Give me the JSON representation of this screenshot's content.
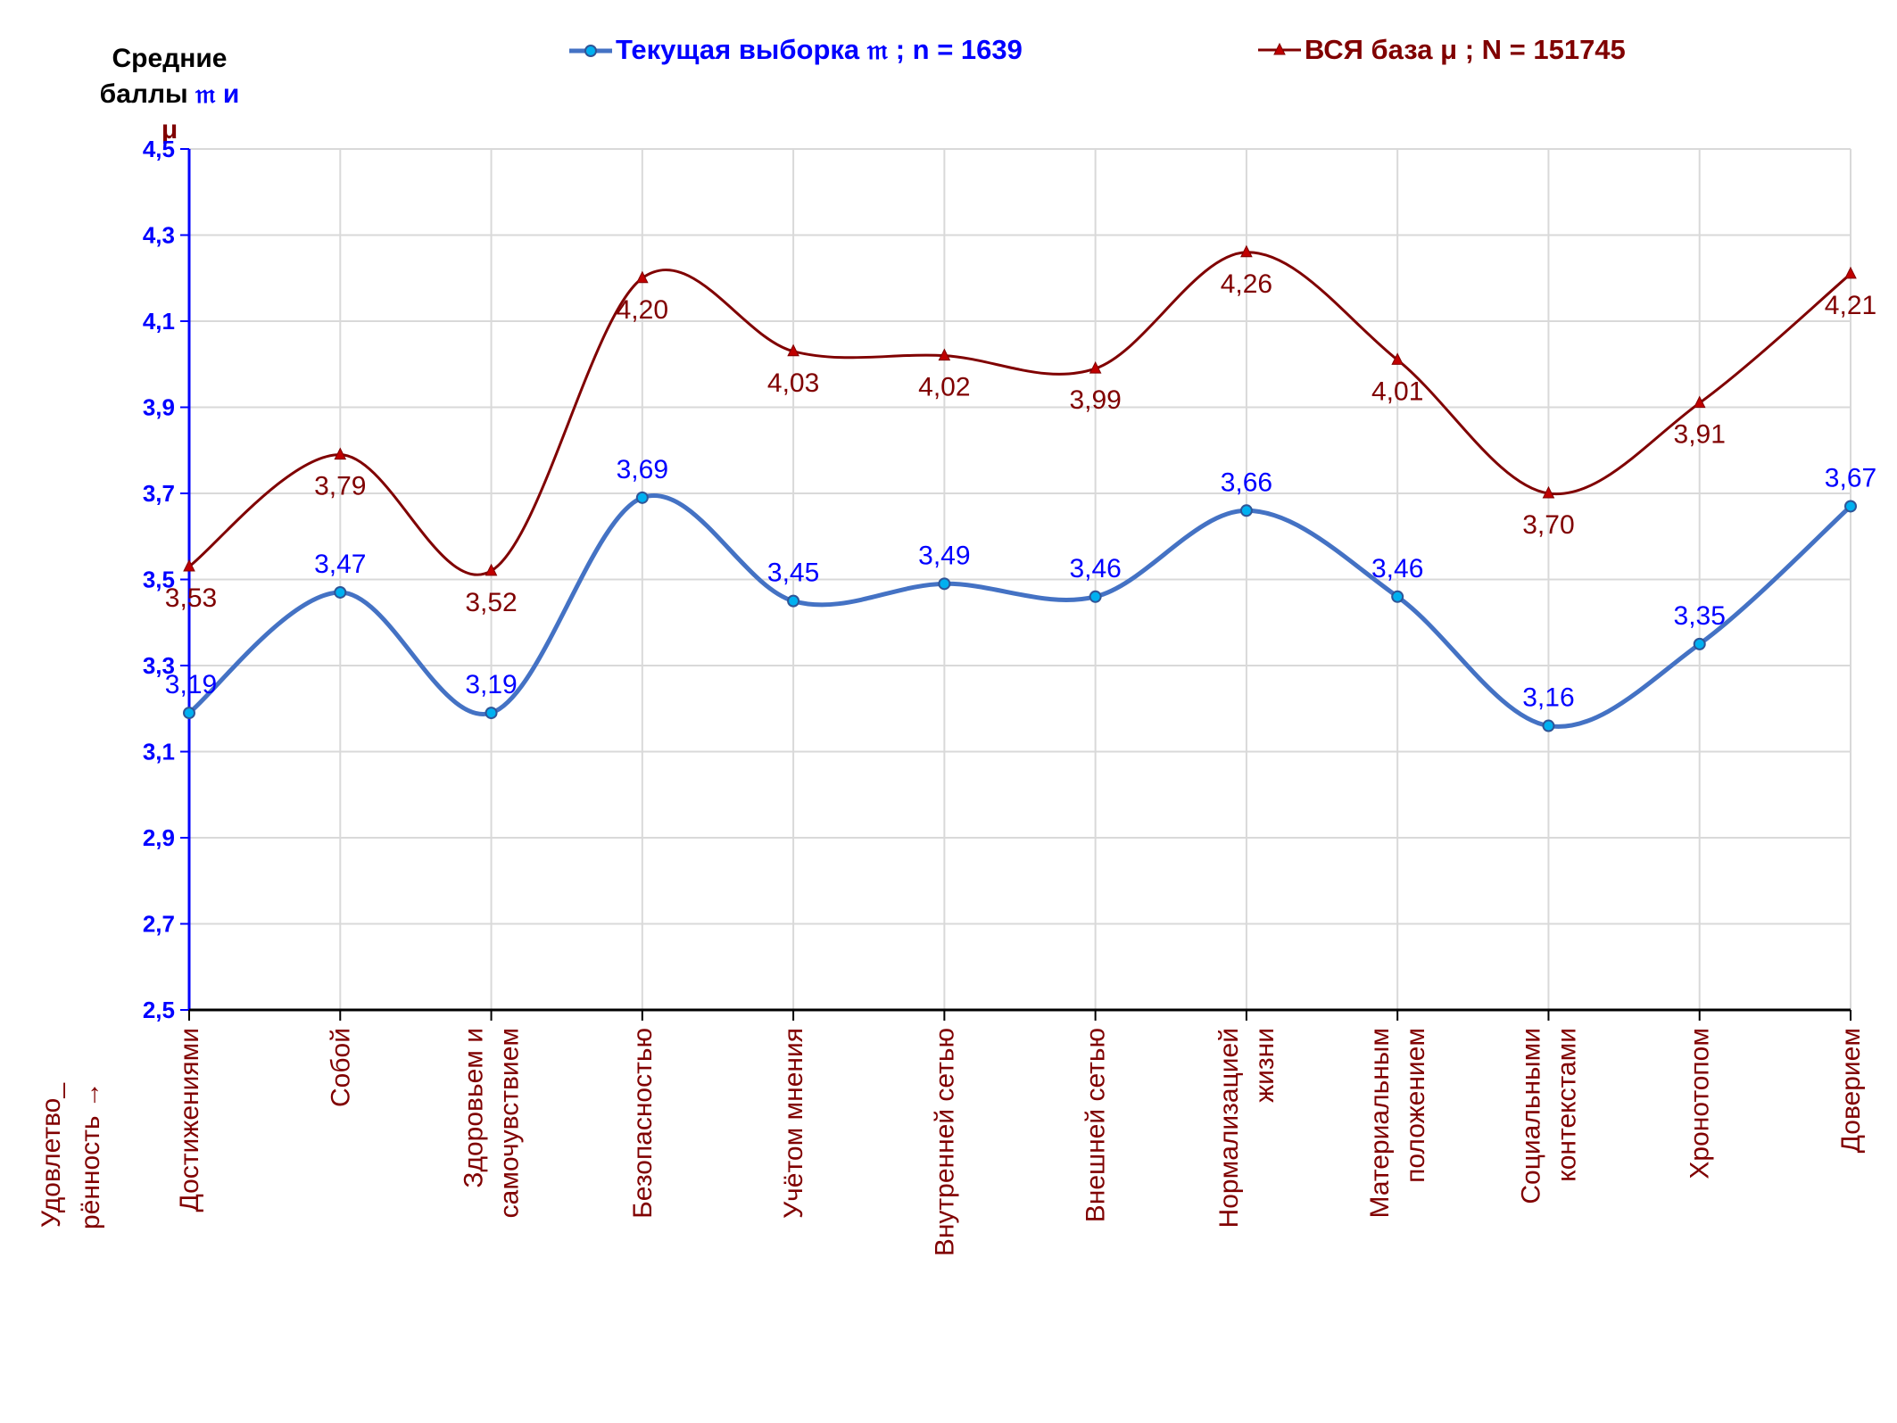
{
  "chart_data": {
    "type": "line",
    "ylabel": {
      "line1": "Средние",
      "line2_prefix": "баллы",
      "sym1": "𝔪",
      "conj": "и",
      "sym2": "μ"
    },
    "ylim": [
      2.5,
      4.5
    ],
    "yticks": [
      "2,5",
      "2,7",
      "2,9",
      "3,1",
      "3,3",
      "3,5",
      "3,7",
      "3,9",
      "4,1",
      "4,3",
      "4,5"
    ],
    "ytick_values": [
      2.5,
      2.7,
      2.9,
      3.1,
      3.3,
      3.5,
      3.7,
      3.9,
      4.1,
      4.3,
      4.5
    ],
    "grid": true,
    "legend_position": "top",
    "xlabel_note": "Удовлетво_ рённость →",
    "categories": [
      "Достижениями",
      "Собой",
      "Здоровьем и самочувствием",
      "Безопасностью",
      "Учётом мнения",
      "Внутренней сетью",
      "Внешней сетью",
      "Нормализацией жизни",
      "Материальным положением",
      "Социальными контекстами",
      "Хронотопом",
      "Доверием"
    ],
    "series": [
      {
        "name": "Текущая выборка 𝔪 ; n = 1639",
        "color": "#4472C4",
        "label_color": "#0000FF",
        "marker": "circle",
        "values": [
          3.19,
          3.47,
          3.19,
          3.69,
          3.45,
          3.49,
          3.46,
          3.66,
          3.46,
          3.16,
          3.35,
          3.67
        ],
        "labels": [
          "3,19",
          "3,47",
          "3,19",
          "3,69",
          "3,45",
          "3,49",
          "3,46",
          "3,66",
          "3,46",
          "3,16",
          "3,35",
          "3,67"
        ]
      },
      {
        "name": "ВСЯ база μ ; N = 151745",
        "color": "#800000",
        "label_color": "#800000",
        "marker": "triangle",
        "values": [
          3.53,
          3.79,
          3.52,
          4.2,
          4.03,
          4.02,
          3.99,
          4.26,
          4.01,
          3.7,
          3.91,
          4.21
        ],
        "labels": [
          "3,53",
          "3,79",
          "3,52",
          "4,20",
          "4,03",
          "4,02",
          "3,99",
          "4,26",
          "4,01",
          "3,70",
          "3,91",
          "4,21"
        ]
      }
    ],
    "colors": {
      "axis_blue": "#0000FF",
      "grid": "#D9D9D9",
      "category_text": "#800000"
    }
  }
}
